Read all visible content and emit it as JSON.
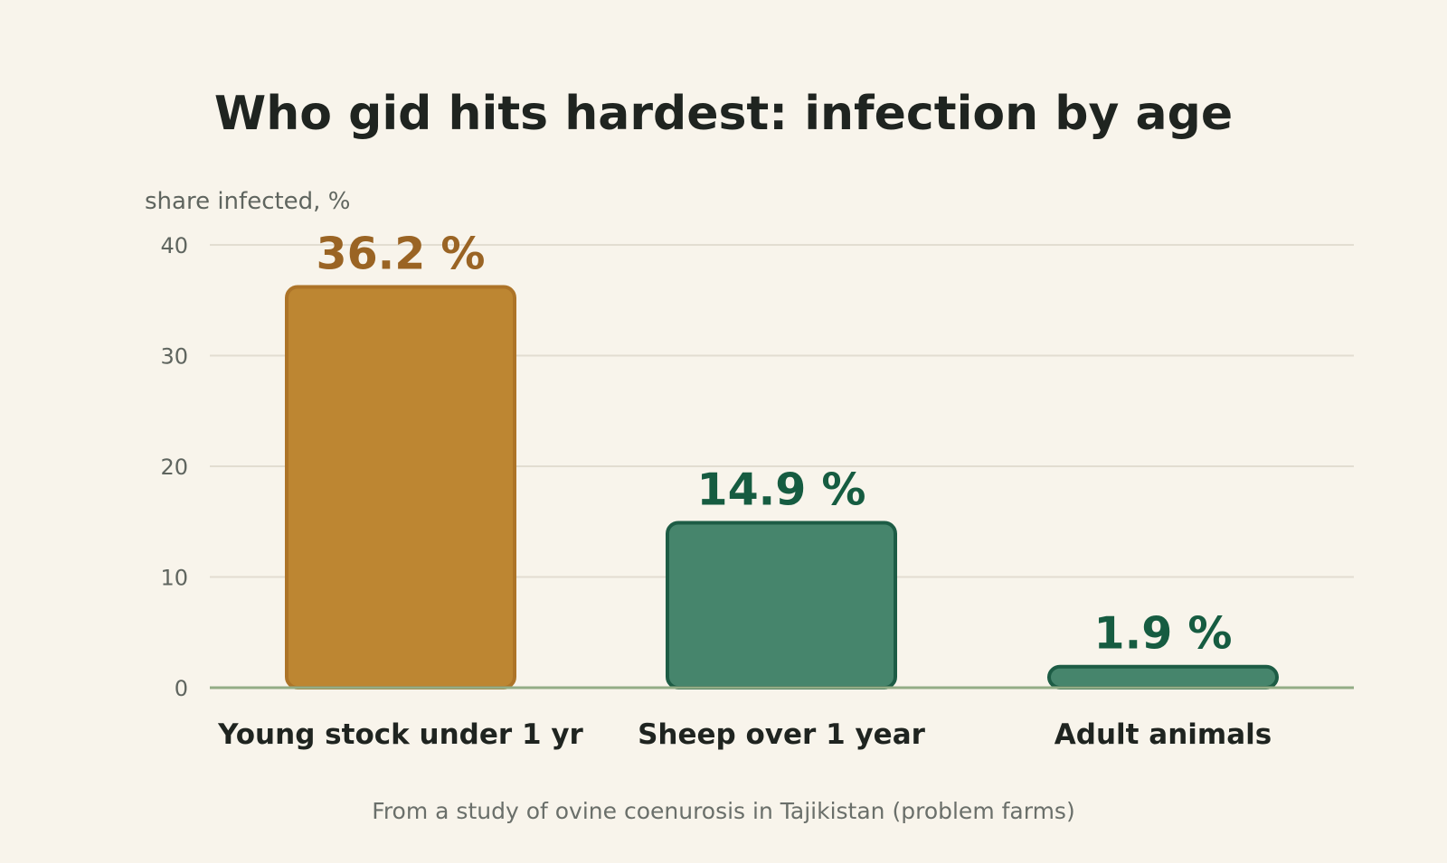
{
  "chart_data": {
    "type": "bar",
    "title": "Who gid hits hardest: infection by age",
    "ylabel": "share infected, %",
    "xlabel": "",
    "ylim": [
      0,
      40
    ],
    "yticks": [
      0,
      10,
      20,
      30,
      40
    ],
    "grid": true,
    "categories": [
      "Young stock under 1 yr",
      "Sheep over 1 year",
      "Adult animals"
    ],
    "values": [
      36.2,
      14.9,
      1.9
    ],
    "value_labels": [
      "36.2 %",
      "14.9 %",
      "1.9 %"
    ],
    "bar_colors": [
      "#bd8632",
      "#46856c",
      "#46856c"
    ],
    "bar_stroke_colors": [
      "#ad7428",
      "#1d5c45",
      "#1d5c45"
    ],
    "label_colors": [
      "#9a6424",
      "#165c41",
      "#165c41"
    ],
    "source": "From a study of ovine coenurosis in Tajikistan (problem farms)"
  }
}
